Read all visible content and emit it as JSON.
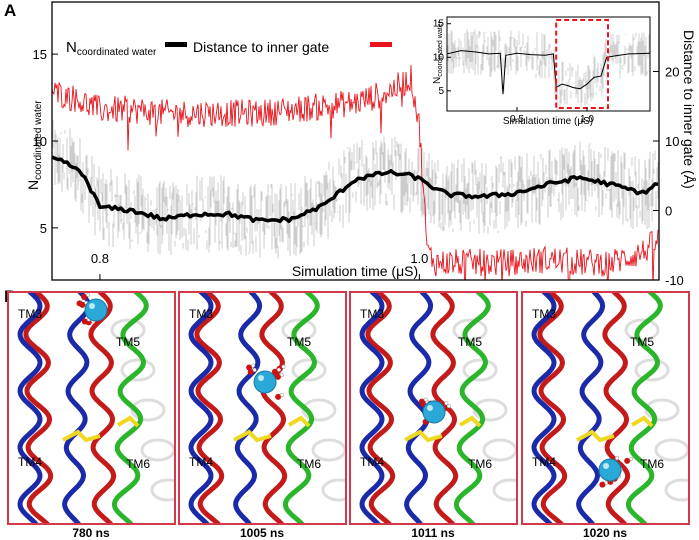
{
  "panel_a": {
    "letter": "A",
    "legend": {
      "water_label_main": "N",
      "water_label_sub": "coordinated water",
      "distance_label": "Distance to inner gate",
      "water_color": "#000000",
      "distance_color": "#e8141c"
    },
    "xlabel": "Simulation time (μS)",
    "ylabel_left_main": "N",
    "ylabel_left_sub": "coordinated water",
    "ylabel_right": "Distance to inner gate (Å)",
    "inset": {
      "xlabel": "Simulation time (μS)",
      "ylabel_main": "N",
      "ylabel_sub": "coordinated water"
    }
  },
  "panel_b": {
    "letter": "B",
    "frames": [
      {
        "caption": "780 ns",
        "labels": [
          "TM3",
          "TM5",
          "TM4",
          "TM6"
        ]
      },
      {
        "caption": "1005 ns",
        "labels": [
          "TM3",
          "TM5",
          "TM4",
          "TM6"
        ]
      },
      {
        "caption": "1011 ns",
        "labels": [
          "TM3",
          "TM5",
          "TM4",
          "TM6"
        ]
      },
      {
        "caption": "1020 ns",
        "labels": [
          "TM3",
          "TM5",
          "TM4",
          "TM6"
        ]
      }
    ],
    "frame_border_color": "#d4384b",
    "helix_colors": {
      "red": "#c41a1a",
      "blue": "#1a2aa8",
      "green": "#2ab52a",
      "yellow": "#f0d820",
      "ion": "#2aa8d8"
    }
  },
  "chart_data": [
    {
      "type": "line",
      "title": "",
      "xlabel": "Simulation time (μS)",
      "ylabel": "N coordinated water",
      "y2label": "Distance to inner gate (Å)",
      "xlim": [
        0.77,
        1.15
      ],
      "ylim": [
        2,
        18
      ],
      "y2lim": [
        -10,
        30
      ],
      "xticks": [
        0.8,
        1.0
      ],
      "yticks": [
        5,
        10,
        15
      ],
      "y2ticks": [
        -10,
        0,
        10,
        20
      ],
      "legend_position": "top-left",
      "series": [
        {
          "name": "Distance to inner gate",
          "axis": "right",
          "color": "#e8141c",
          "x": [
            0.77,
            0.78,
            0.79,
            0.8,
            0.82,
            0.84,
            0.86,
            0.88,
            0.9,
            0.92,
            0.94,
            0.96,
            0.98,
            0.995,
            1.0,
            1.005,
            1.01,
            1.02,
            1.04,
            1.06,
            1.08,
            1.1,
            1.12,
            1.14,
            1.15
          ],
          "y": [
            17,
            16.5,
            15.5,
            14.5,
            14.5,
            14,
            14,
            14,
            14,
            14.5,
            15,
            15.5,
            17,
            19,
            12,
            -6,
            -7.5,
            -7.5,
            -7.5,
            -7.5,
            -7,
            -7.5,
            -7.5,
            -6,
            -4
          ]
        },
        {
          "name": "N coordinated water",
          "axis": "left",
          "color": "#000000",
          "x": [
            0.77,
            0.78,
            0.79,
            0.8,
            0.82,
            0.84,
            0.86,
            0.88,
            0.9,
            0.92,
            0.94,
            0.96,
            0.98,
            0.995,
            1.0,
            1.005,
            1.01,
            1.02,
            1.04,
            1.06,
            1.08,
            1.1,
            1.12,
            1.14,
            1.15
          ],
          "y": [
            9,
            8.7,
            8,
            6.2,
            6,
            5.5,
            5.8,
            5.8,
            5.4,
            5.5,
            6.3,
            7.8,
            8.2,
            8,
            7.8,
            7.6,
            7.2,
            6.9,
            6.8,
            7.0,
            7.5,
            7.9,
            7.5,
            7.0,
            7.6
          ]
        }
      ]
    },
    {
      "type": "line",
      "title": "",
      "xlabel": "Simulation time (μS)",
      "ylabel": "N coordinated water",
      "xlim": [
        0.0,
        1.45
      ],
      "ylim": [
        2,
        16
      ],
      "xticks": [
        0.5,
        1.0
      ],
      "yticks": [
        5,
        10,
        15
      ],
      "highlight_range": [
        0.78,
        1.15
      ],
      "highlight_color": "#e8141c",
      "series": [
        {
          "color": "#000000",
          "x": [
            0.0,
            0.1,
            0.2,
            0.3,
            0.38,
            0.4,
            0.42,
            0.5,
            0.6,
            0.7,
            0.76,
            0.78,
            0.82,
            0.86,
            0.9,
            0.95,
            1.0,
            1.05,
            1.1,
            1.14,
            1.2,
            1.3,
            1.45
          ],
          "y": [
            10.5,
            11,
            10.8,
            10.5,
            10.6,
            4.5,
            10.3,
            10.6,
            10.4,
            10.3,
            10.5,
            5.5,
            6.0,
            5.8,
            5.5,
            5.3,
            6.0,
            7.0,
            7.2,
            10,
            10.2,
            10.5,
            10.6
          ]
        }
      ]
    }
  ]
}
